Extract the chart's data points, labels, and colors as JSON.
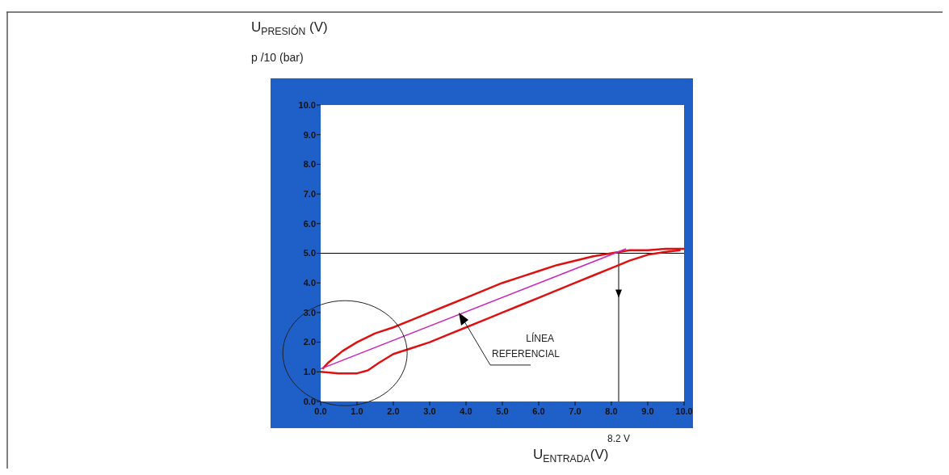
{
  "chart_data": {
    "type": "line",
    "ylabel": "U$_{PRESIÓN}$ (V)",
    "xlabel": "U$_{ENTRADA}$(V)",
    "xlim": [
      0,
      10
    ],
    "ylim": [
      0,
      10
    ],
    "xticks": [
      {
        "value": 0,
        "label": "0.0"
      },
      {
        "value": 1,
        "label": "1.0"
      },
      {
        "value": 2,
        "label": "2.0"
      },
      {
        "value": 3,
        "label": "3.0"
      },
      {
        "value": 4,
        "label": "4.0"
      },
      {
        "value": 5,
        "label": "5.0"
      },
      {
        "value": 6,
        "label": "6.0"
      },
      {
        "value": 7,
        "label": "7.0"
      },
      {
        "value": 8,
        "label": "8.0"
      },
      {
        "value": 9,
        "label": "9.0"
      },
      {
        "value": 10,
        "label": "10.0"
      }
    ],
    "yticks": [
      {
        "value": 0,
        "label": "0.0"
      },
      {
        "value": 1,
        "label": "1.0"
      },
      {
        "value": 2,
        "label": "2.0"
      },
      {
        "value": 3,
        "label": "3.0"
      },
      {
        "value": 4,
        "label": "4.0"
      },
      {
        "value": 5,
        "label": "5.0"
      },
      {
        "value": 6,
        "label": "6.0"
      },
      {
        "value": 7,
        "label": "7.0"
      },
      {
        "value": 8,
        "label": "8.0"
      },
      {
        "value": 9,
        "label": "9.0"
      },
      {
        "value": 10,
        "label": "10.0"
      }
    ],
    "series": [
      {
        "color": "#dd1111",
        "x": [
          0.05,
          0.2,
          0.4,
          0.6,
          1.0,
          1.5,
          2.0,
          2.5,
          3.0,
          3.5,
          4.0,
          4.5,
          5.0,
          5.5,
          6.0,
          6.5,
          7.0,
          7.5,
          8.0,
          8.5,
          9.0,
          9.5,
          10.0
        ],
        "values": [
          1.1,
          1.3,
          1.5,
          1.7,
          2.0,
          2.3,
          2.5,
          2.75,
          3.0,
          3.25,
          3.5,
          3.75,
          4.0,
          4.2,
          4.4,
          4.6,
          4.75,
          4.9,
          5.0,
          5.1,
          5.1,
          5.15,
          5.15
        ]
      },
      {
        "color": "#dd1111",
        "x": [
          0,
          0.5,
          1.0,
          1.3,
          1.6,
          2.0,
          2.5,
          3.0,
          3.5,
          4.0,
          4.5,
          5.0,
          5.5,
          6.0,
          6.5,
          7.0,
          7.5,
          8.0,
          8.5,
          9.0,
          9.5,
          9.9
        ],
        "values": [
          1.0,
          0.95,
          0.95,
          1.05,
          1.3,
          1.6,
          1.8,
          2.0,
          2.25,
          2.5,
          2.75,
          3.0,
          3.25,
          3.5,
          3.75,
          4.0,
          4.25,
          4.5,
          4.75,
          4.95,
          5.05,
          5.1
        ]
      },
      {
        "color": "#cc22bb",
        "x": [
          0,
          8.4
        ],
        "values": [
          1.1,
          5.15
        ]
      }
    ],
    "ref_lines": [
      {
        "axis": "y",
        "value": 5.0,
        "color": "#000000"
      },
      {
        "axis": "x",
        "value": 8.2,
        "label": "8.2 V",
        "color": "#000000"
      }
    ],
    "annotations": [
      "p /10 (bar)",
      {
        "text": "LÍNEA REFERENCIAL",
        "x": 3.8,
        "y": 3.0
      }
    ]
  }
}
